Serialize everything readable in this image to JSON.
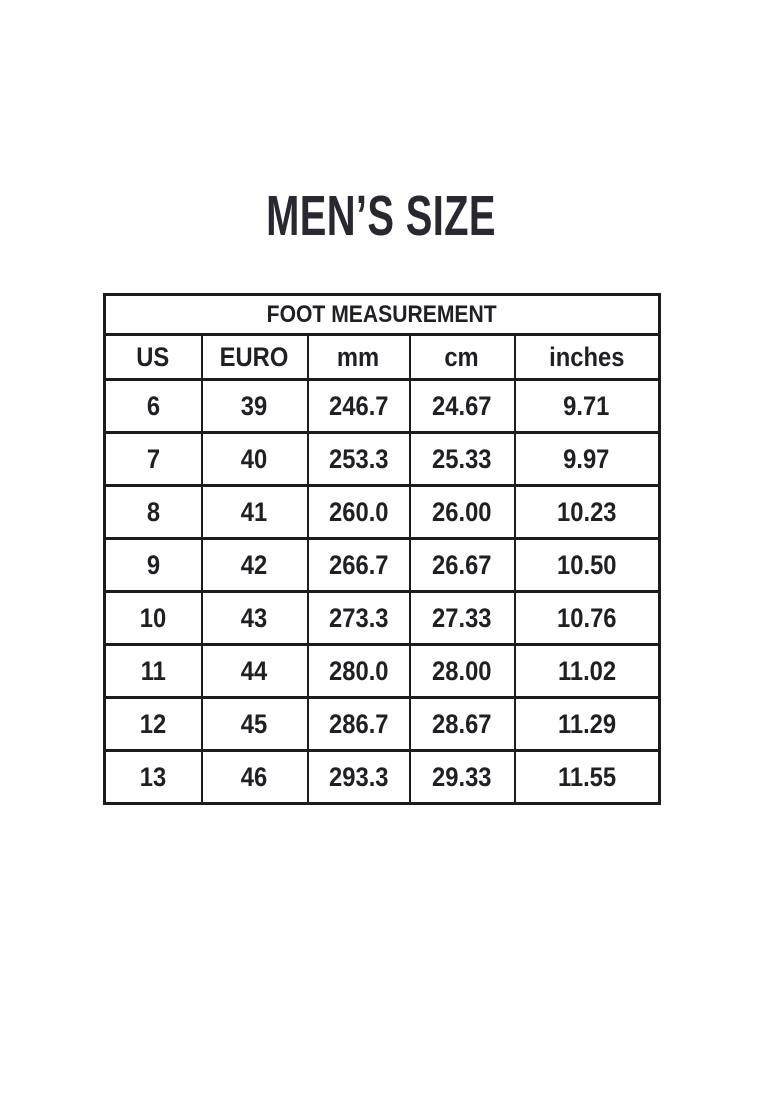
{
  "title": "MEN’S SIZE",
  "chart_data": {
    "type": "table",
    "title": "FOOT MEASUREMENT",
    "columns": [
      "US",
      "EURO",
      "mm",
      "cm",
      "inches"
    ],
    "rows": [
      [
        "6",
        "39",
        "246.7",
        "24.67",
        "9.71"
      ],
      [
        "7",
        "40",
        "253.3",
        "25.33",
        "9.97"
      ],
      [
        "8",
        "41",
        "260.0",
        "26.00",
        "10.23"
      ],
      [
        "9",
        "42",
        "266.7",
        "26.67",
        "10.50"
      ],
      [
        "10",
        "43",
        "273.3",
        "27.33",
        "10.76"
      ],
      [
        "11",
        "44",
        "280.0",
        "28.00",
        "11.02"
      ],
      [
        "12",
        "45",
        "286.7",
        "28.67",
        "11.29"
      ],
      [
        "13",
        "46",
        "293.3",
        "29.33",
        "11.55"
      ]
    ]
  },
  "colors": {
    "page_bg": "#FFFFFF",
    "header_bg": "#F7EA8C",
    "columns_bg": "#BEE0F2",
    "border": "#1C1C1C",
    "text": "#201F23",
    "title_text": "#2A2730"
  }
}
